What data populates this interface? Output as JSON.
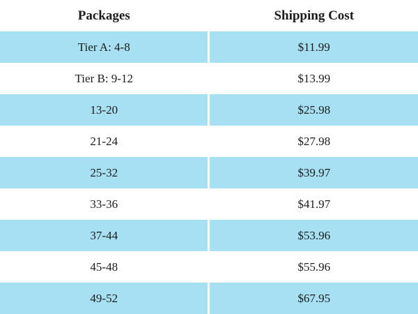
{
  "chart_data": {
    "type": "table",
    "title": "",
    "columns": [
      "Packages",
      "Shipping Cost"
    ],
    "rows": [
      [
        "Tier A: 4-8",
        "$11.99"
      ],
      [
        "Tier B: 9-12",
        "$13.99"
      ],
      [
        "13-20",
        "$25.98"
      ],
      [
        "21-24",
        "$27.98"
      ],
      [
        "25-32",
        "$39.97"
      ],
      [
        "33-36",
        "$41.97"
      ],
      [
        "37-44",
        "$53.96"
      ],
      [
        "45-48",
        "$55.96"
      ],
      [
        "49-52",
        "$67.95"
      ]
    ],
    "layout": {
      "header_background": "#ffffff",
      "alternating_highlight": "odd data rows highlighted starting from first data row",
      "column_divider": "white vertical gap between columns",
      "text_align": "center"
    }
  },
  "colors": {
    "row_highlight": "#a6e0f2",
    "row_plain": "#ffffff",
    "text": "#1c1c1c"
  }
}
